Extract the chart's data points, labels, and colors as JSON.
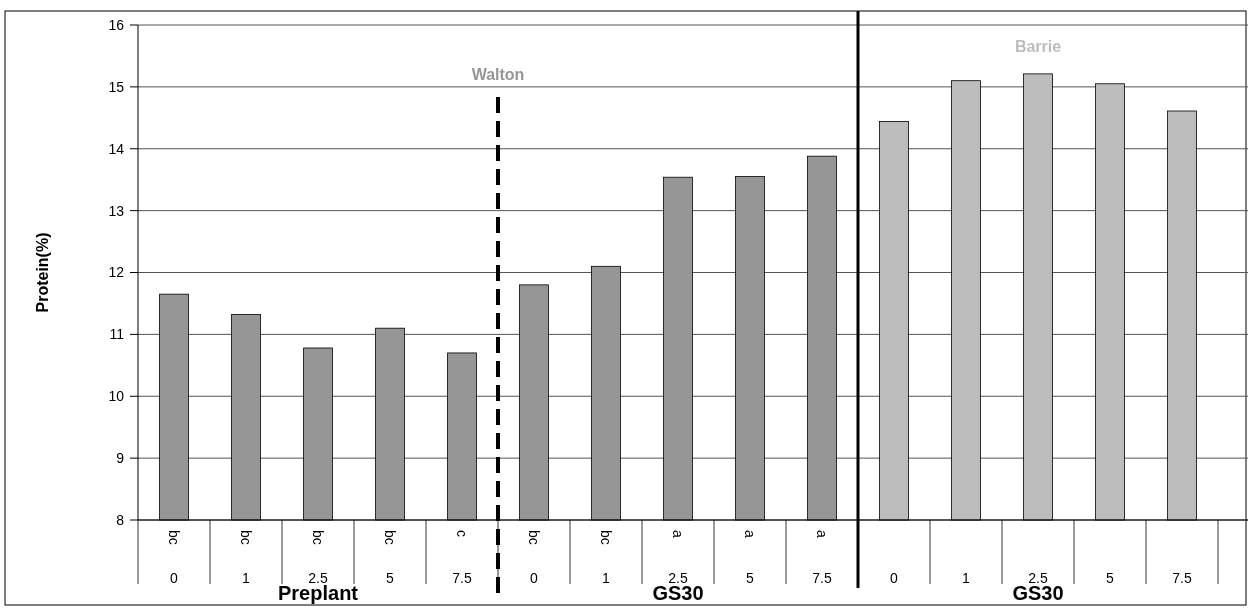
{
  "chart_data": {
    "type": "bar",
    "ylabel": "Protein(%)",
    "categories": [
      "0",
      "1",
      "2.5",
      "5",
      "7.5",
      "0",
      "1",
      "2.5",
      "5",
      "7.5",
      "0",
      "1",
      "2.5",
      "5",
      "7.5"
    ],
    "series": [
      {
        "name": "Walton",
        "color": "#969696",
        "values": [
          11.65,
          11.32,
          10.78,
          11.1,
          10.7,
          11.8,
          12.1,
          13.54,
          13.55,
          13.88,
          null,
          null,
          null,
          null,
          null
        ],
        "value_labels": [
          "bc",
          "bc",
          "bc",
          "bc",
          "c",
          "bc",
          "bc",
          "a",
          "a",
          "a",
          null,
          null,
          null,
          null,
          null
        ]
      },
      {
        "name": "Barrie",
        "color": "#bdbdbd",
        "values": [
          null,
          null,
          null,
          null,
          null,
          null,
          null,
          null,
          null,
          null,
          14.44,
          15.1,
          15.21,
          15.05,
          14.61
        ]
      }
    ],
    "annotations": [
      "Preplant",
      "GS30",
      "GS30"
    ],
    "ylim": [
      8,
      16
    ],
    "yticks": [
      8,
      9,
      10,
      11,
      12,
      13,
      14,
      15,
      16
    ],
    "grid": "y"
  }
}
